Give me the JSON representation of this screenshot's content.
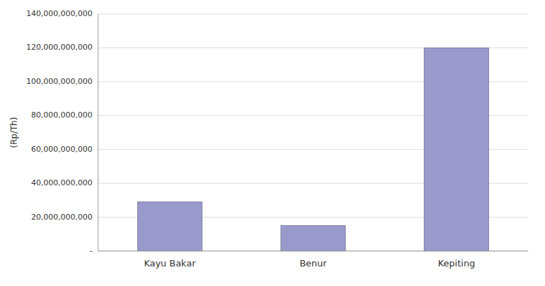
{
  "chart_data": {
    "type": "bar",
    "ylabel": "(Rp/Th)",
    "categories": [
      "Kayu Bakar",
      "Benur",
      "Kepiting"
    ],
    "values": [
      29000000000,
      15000000000,
      120000000000
    ],
    "color": "#9999CC",
    "ylim": [
      0,
      140000000000
    ],
    "yticks": [
      {
        "value": 0,
        "label": "-"
      },
      {
        "value": 20000000000,
        "label": "20,000,000,000"
      },
      {
        "value": 40000000000,
        "label": "40,000,000,000"
      },
      {
        "value": 60000000000,
        "label": "60,000,000,000"
      },
      {
        "value": 80000000000,
        "label": "80,000,000,000"
      },
      {
        "value": 100000000000,
        "label": "100,000,000,000"
      },
      {
        "value": 120000000000,
        "label": "120,000,000,000"
      },
      {
        "value": 140000000000,
        "label": "140,000,000,000"
      }
    ],
    "grid": true
  }
}
